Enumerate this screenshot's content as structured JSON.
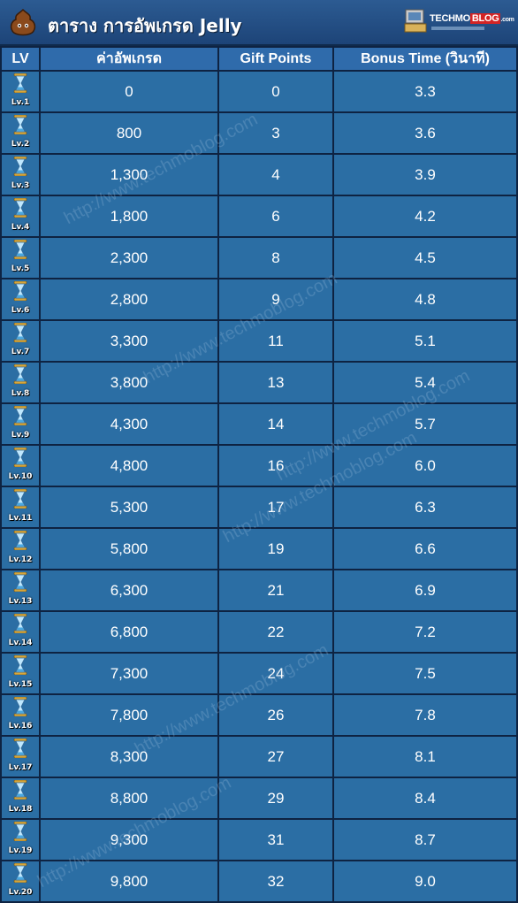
{
  "title": "ตาราง การอัพเกรด Jelly",
  "logo": {
    "main": "TECHMO",
    "accent": "BLOG",
    "suffix": ".com"
  },
  "watermark": "http://www.techmoblog.com",
  "headers": [
    "LV",
    "ค่าอัพเกรด",
    "Gift Points",
    "Bonus Time (วินาที)"
  ],
  "rows": [
    {
      "lv": "Lv.1",
      "cost": "0",
      "gift": "0",
      "bonus": "3.3"
    },
    {
      "lv": "Lv.2",
      "cost": "800",
      "gift": "3",
      "bonus": "3.6"
    },
    {
      "lv": "Lv.3",
      "cost": "1,300",
      "gift": "4",
      "bonus": "3.9"
    },
    {
      "lv": "Lv.4",
      "cost": "1,800",
      "gift": "6",
      "bonus": "4.2"
    },
    {
      "lv": "Lv.5",
      "cost": "2,300",
      "gift": "8",
      "bonus": "4.5"
    },
    {
      "lv": "Lv.6",
      "cost": "2,800",
      "gift": "9",
      "bonus": "4.8"
    },
    {
      "lv": "Lv.7",
      "cost": "3,300",
      "gift": "11",
      "bonus": "5.1"
    },
    {
      "lv": "Lv.8",
      "cost": "3,800",
      "gift": "13",
      "bonus": "5.4"
    },
    {
      "lv": "Lv.9",
      "cost": "4,300",
      "gift": "14",
      "bonus": "5.7"
    },
    {
      "lv": "Lv.10",
      "cost": "4,800",
      "gift": "16",
      "bonus": "6.0"
    },
    {
      "lv": "Lv.11",
      "cost": "5,300",
      "gift": "17",
      "bonus": "6.3"
    },
    {
      "lv": "Lv.12",
      "cost": "5,800",
      "gift": "19",
      "bonus": "6.6"
    },
    {
      "lv": "Lv.13",
      "cost": "6,300",
      "gift": "21",
      "bonus": "6.9"
    },
    {
      "lv": "Lv.14",
      "cost": "6,800",
      "gift": "22",
      "bonus": "7.2"
    },
    {
      "lv": "Lv.15",
      "cost": "7,300",
      "gift": "24",
      "bonus": "7.5"
    },
    {
      "lv": "Lv.16",
      "cost": "7,800",
      "gift": "26",
      "bonus": "7.8"
    },
    {
      "lv": "Lv.17",
      "cost": "8,300",
      "gift": "27",
      "bonus": "8.1"
    },
    {
      "lv": "Lv.18",
      "cost": "8,800",
      "gift": "29",
      "bonus": "8.4"
    },
    {
      "lv": "Lv.19",
      "cost": "9,300",
      "gift": "31",
      "bonus": "8.7"
    },
    {
      "lv": "Lv.20",
      "cost": "9,800",
      "gift": "32",
      "bonus": "9.0"
    }
  ],
  "colors": {
    "header_bg": "#2f6bab",
    "cell_bg": "#2b6ea4",
    "grid": "#0e2342",
    "title_bar": "#1d4478"
  },
  "icons": {
    "jelly": "jelly-icon",
    "level": "hourglass-icon"
  }
}
